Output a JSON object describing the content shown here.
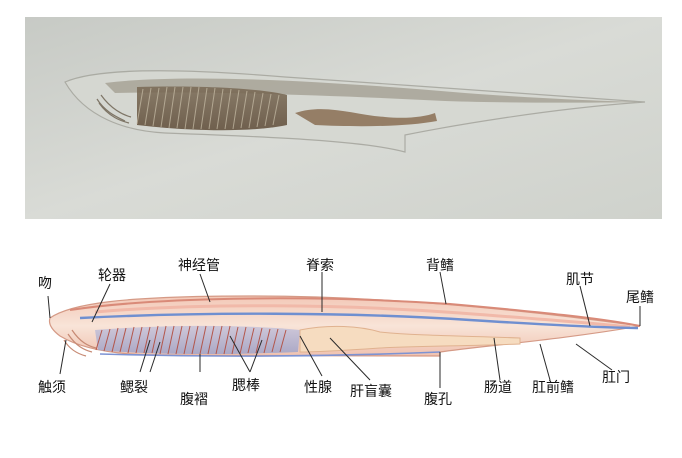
{
  "labels": {
    "wen": "吻",
    "lunqi": "轮器",
    "shenjingguan": "神经管",
    "jisuo": "脊索",
    "beiqi": "背鳍",
    "jijie": "肌节",
    "weiqi": "尾鳍",
    "chuxu": "触须",
    "sailie": "鳃裂",
    "fuzhe": "腹褶",
    "saibang": "腮棒",
    "xingxian": "性腺",
    "ganmangnang": "肝盲囊",
    "fukong": "腹孔",
    "changdao": "肠道",
    "ganqianqi": "肛前鳍",
    "ganmen": "肛门"
  }
}
